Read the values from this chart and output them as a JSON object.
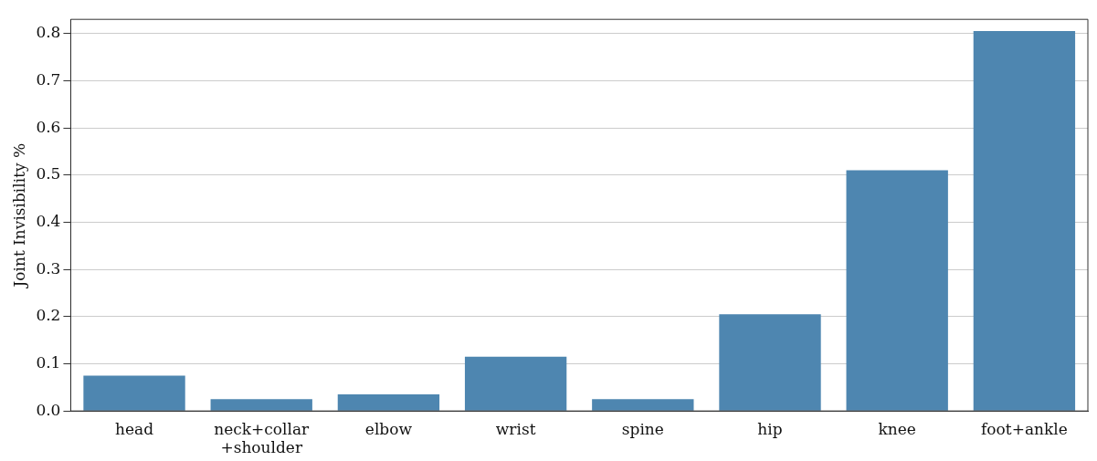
{
  "chart_data": {
    "type": "bar",
    "ylabel": "Joint Invisibility %",
    "categories": [
      "head",
      "neck+collar +shoulder",
      "elbow",
      "wrist",
      "spine",
      "hip",
      "knee",
      "foot+ankle"
    ],
    "values": [
      0.075,
      0.025,
      0.035,
      0.115,
      0.025,
      0.205,
      0.51,
      0.805
    ],
    "color": "#4e86b0",
    "ylim": [
      0,
      0.83
    ],
    "yticks": [
      {
        "value": 0,
        "label": "0.0"
      },
      0.1,
      0.2,
      0.3,
      0.4,
      0.5,
      0.6,
      0.7,
      0.8
    ],
    "grid": "y"
  }
}
